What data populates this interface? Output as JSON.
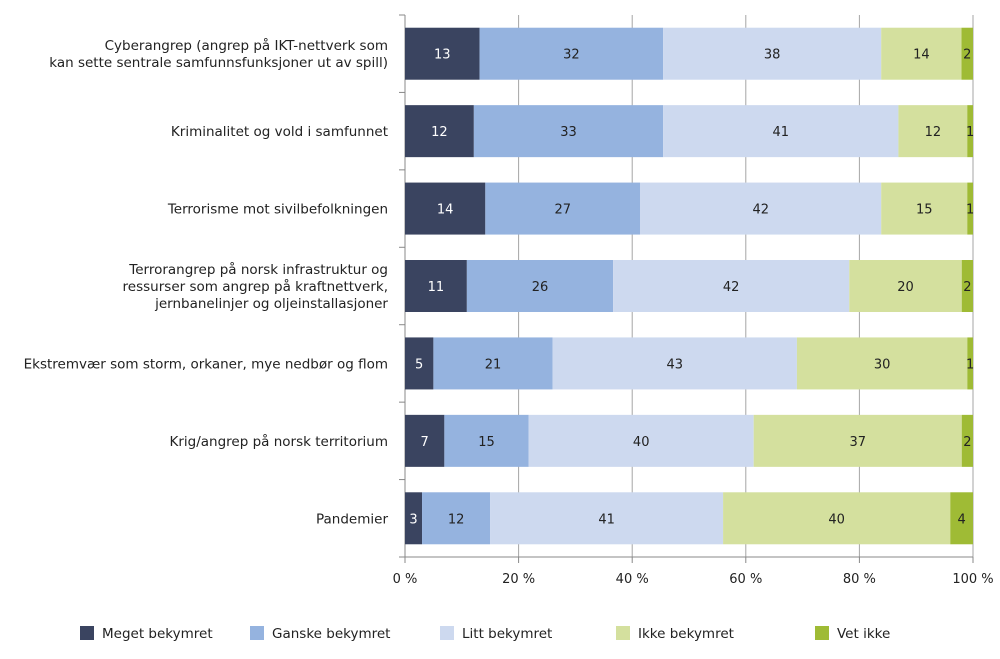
{
  "chart_data": {
    "type": "bar",
    "orientation": "horizontal",
    "stacked": "percent",
    "categories": [
      [
        "Cyberangrep (angrep på IKT-nettverk som",
        "kan sette sentrale samfunnsfunksjoner ut av spill)"
      ],
      [
        "Kriminalitet og vold i samfunnet"
      ],
      [
        "Terrorisme mot sivilbefolkningen"
      ],
      [
        "Terrorangrep på norsk infrastruktur og",
        "ressurser som angrep på kraftnettverk,",
        "jernbanelinjer og oljeinstallasjoner"
      ],
      [
        "Ekstremvær som storm, orkaner, mye nedbør og flom"
      ],
      [
        "Krig/angrep på norsk territorium"
      ],
      [
        "Pandemier"
      ]
    ],
    "series": [
      {
        "name": "Meget bekymret",
        "color": "#3a4460",
        "label_color": "#ffffff",
        "values": [
          13,
          12,
          14,
          11,
          5,
          7,
          3
        ]
      },
      {
        "name": "Ganske bekymret",
        "color": "#95b3df",
        "label_color": "#222222",
        "values": [
          32,
          33,
          27,
          26,
          21,
          15,
          12
        ]
      },
      {
        "name": "Litt bekymret",
        "color": "#cdd9ef",
        "label_color": "#222222",
        "values": [
          38,
          41,
          42,
          42,
          43,
          40,
          41
        ]
      },
      {
        "name": "Ikke bekymret",
        "color": "#d4e09e",
        "label_color": "#222222",
        "values": [
          14,
          12,
          15,
          20,
          30,
          37,
          40
        ]
      },
      {
        "name": "Vet ikke",
        "color": "#9fbb35",
        "label_color": "#222222",
        "values": [
          2,
          1,
          1,
          2,
          1,
          2,
          4
        ]
      }
    ],
    "xlim": [
      0,
      100
    ],
    "xticks": [
      "0 %",
      "20 %",
      "40 %",
      "60 %",
      "80 %",
      "100 %"
    ],
    "grid": true,
    "legend_position": "bottom"
  }
}
